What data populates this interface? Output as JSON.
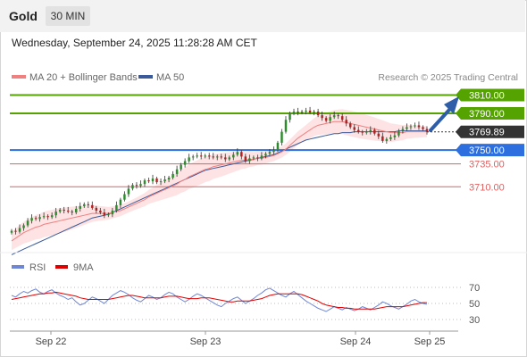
{
  "header": {
    "instrument": "Gold",
    "timeframe": "30 MIN"
  },
  "datetime": "Wednesday, September 24, 2025 11:28:28 AM CET",
  "legend": {
    "ma20_label": "MA 20 + Bollinger Bands",
    "ma50_label": "MA 50",
    "ma20_color": "#f08080",
    "ma50_color": "#3a5a9a",
    "credit": "Research © 2025 Trading Central"
  },
  "rsi_legend": {
    "rsi_label": "RSI",
    "ma_label": "9MA",
    "rsi_color": "#6f86d6",
    "ma_color": "#e00000"
  },
  "chart_data": [
    {
      "type": "candlestick",
      "x_ticks": [
        "Sep 22",
        "Sep 23",
        "Sep 24",
        "Sep 25"
      ],
      "ylim": [
        3630,
        3830
      ],
      "levels": [
        {
          "value": 3810.0,
          "label": "3810.00",
          "kind": "target",
          "color": "#55a300"
        },
        {
          "value": 3790.0,
          "label": "3790.00",
          "kind": "target",
          "color": "#55a300"
        },
        {
          "value": 3769.89,
          "label": "3769.89",
          "kind": "last",
          "color": "#333333"
        },
        {
          "value": 3750.0,
          "label": "3750.00",
          "kind": "pivot",
          "color": "#2e6fe0"
        },
        {
          "value": 3735.0,
          "label": "3735.00",
          "kind": "support",
          "color": "#e06060"
        },
        {
          "value": 3710.0,
          "label": "3710.00",
          "kind": "support",
          "color": "#e06060"
        }
      ],
      "close_series": [
        3662,
        3661,
        3665,
        3668,
        3673,
        3676,
        3675,
        3677,
        3678,
        3677,
        3679,
        3683,
        3685,
        3684,
        3683,
        3682,
        3686,
        3689,
        3691,
        3690,
        3687,
        3684,
        3682,
        3679,
        3680,
        3684,
        3690,
        3696,
        3702,
        3708,
        3712,
        3711,
        3713,
        3717,
        3716,
        3719,
        3715,
        3716,
        3718,
        3720,
        3724,
        3729,
        3734,
        3738,
        3742,
        3743,
        3744,
        3743,
        3744,
        3743,
        3742,
        3743,
        3742,
        3740,
        3742,
        3745,
        3748,
        3743,
        3738,
        3741,
        3742,
        3741,
        3744,
        3746,
        3748,
        3750,
        3758,
        3770,
        3783,
        3790,
        3792,
        3791,
        3792,
        3793,
        3791,
        3792,
        3788,
        3785,
        3782,
        3786,
        3788,
        3787,
        3783,
        3779,
        3775,
        3772,
        3770,
        3769,
        3770,
        3772,
        3768,
        3765,
        3760,
        3762,
        3764,
        3766,
        3771,
        3773,
        3775,
        3776,
        3777,
        3775,
        3773,
        3770
      ],
      "ma20_series": [
        3651,
        3654,
        3657,
        3660,
        3662,
        3664,
        3666,
        3667,
        3669,
        3670,
        3671,
        3672,
        3673,
        3674,
        3675,
        3676,
        3677,
        3678,
        3679,
        3680,
        3681,
        3681,
        3681,
        3681,
        3681,
        3682,
        3683,
        3684,
        3686,
        3688,
        3690,
        3692,
        3694,
        3696,
        3699,
        3701,
        3703,
        3705,
        3707,
        3709,
        3711,
        3713,
        3716,
        3718,
        3721,
        3723,
        3725,
        3727,
        3729,
        3730,
        3732,
        3733,
        3734,
        3735,
        3736,
        3737,
        3738,
        3739,
        3739,
        3740,
        3740,
        3741,
        3741,
        3742,
        3743,
        3744,
        3746,
        3748,
        3751,
        3755,
        3759,
        3763,
        3766,
        3769,
        3772,
        3775,
        3777,
        3778,
        3779,
        3780,
        3781,
        3781,
        3781,
        3780,
        3779,
        3778,
        3777,
        3776,
        3775,
        3774,
        3773,
        3772,
        3771,
        3770,
        3769,
        3769,
        3769,
        3769,
        3770,
        3770,
        3770,
        3770,
        3770,
        3770
      ],
      "ma50_series": [
        3636,
        3638,
        3640,
        3642,
        3644,
        3646,
        3648,
        3650,
        3652,
        3654,
        3656,
        3658,
        3660,
        3662,
        3664,
        3666,
        3668,
        3670,
        3672,
        3674,
        3676,
        3677,
        3678,
        3679,
        3680,
        3682,
        3684,
        3686,
        3688,
        3690,
        3692,
        3694,
        3696,
        3698,
        3700,
        3702,
        3704,
        3706,
        3708,
        3710,
        3712,
        3714,
        3716,
        3718,
        3720,
        3722,
        3724,
        3726,
        3728,
        3729,
        3730,
        3731,
        3732,
        3733,
        3734,
        3735,
        3736,
        3737,
        3738,
        3739,
        3740,
        3741,
        3742,
        3743,
        3744,
        3745,
        3747,
        3749,
        3751,
        3753,
        3755,
        3757,
        3759,
        3761,
        3762,
        3763,
        3764,
        3765,
        3766,
        3767,
        3768,
        3768,
        3769,
        3769,
        3769,
        3770,
        3770,
        3770,
        3770,
        3770,
        3770,
        3770,
        3770,
        3770,
        3770,
        3770,
        3771,
        3771,
        3771,
        3771,
        3771,
        3771,
        3771,
        3771
      ]
    },
    {
      "type": "line",
      "name": "RSI",
      "ylim": [
        20,
        80
      ],
      "y_ticks": [
        70,
        50,
        30
      ],
      "rsi_series": [
        60,
        58,
        62,
        65,
        63,
        66,
        68,
        64,
        62,
        65,
        67,
        63,
        60,
        58,
        55,
        57,
        52,
        48,
        50,
        54,
        58,
        56,
        53,
        50,
        55,
        60,
        63,
        66,
        64,
        61,
        57,
        54,
        52,
        56,
        60,
        58,
        55,
        57,
        61,
        64,
        62,
        58,
        55,
        52,
        55,
        59,
        62,
        60,
        57,
        54,
        51,
        48,
        46,
        50,
        53,
        56,
        58,
        54,
        50,
        53,
        56,
        60,
        63,
        67,
        69,
        66,
        63,
        60,
        58,
        62,
        65,
        61,
        57,
        53,
        50,
        47,
        44,
        42,
        40,
        43,
        46,
        44,
        42,
        45,
        43,
        41,
        43,
        46,
        44,
        42,
        45,
        48,
        52,
        50,
        47,
        45,
        43,
        46,
        49,
        53,
        55,
        52,
        50,
        49
      ],
      "ma_series": [
        55,
        56,
        57,
        58,
        59,
        60,
        61,
        62,
        62,
        63,
        63,
        64,
        63,
        62,
        61,
        60,
        59,
        57,
        56,
        55,
        55,
        55,
        55,
        55,
        55,
        56,
        57,
        58,
        59,
        60,
        60,
        59,
        58,
        57,
        57,
        57,
        57,
        57,
        58,
        59,
        59,
        59,
        58,
        57,
        56,
        56,
        56,
        57,
        57,
        57,
        56,
        55,
        54,
        53,
        52,
        52,
        53,
        53,
        53,
        53,
        54,
        55,
        56,
        58,
        60,
        61,
        62,
        62,
        62,
        62,
        62,
        62,
        61,
        59,
        57,
        55,
        53,
        50,
        48,
        47,
        46,
        45,
        45,
        44,
        44,
        43,
        43,
        43,
        43,
        43,
        43,
        44,
        45,
        46,
        46,
        46,
        46,
        46,
        47,
        48,
        49,
        50,
        51,
        51
      ]
    }
  ]
}
